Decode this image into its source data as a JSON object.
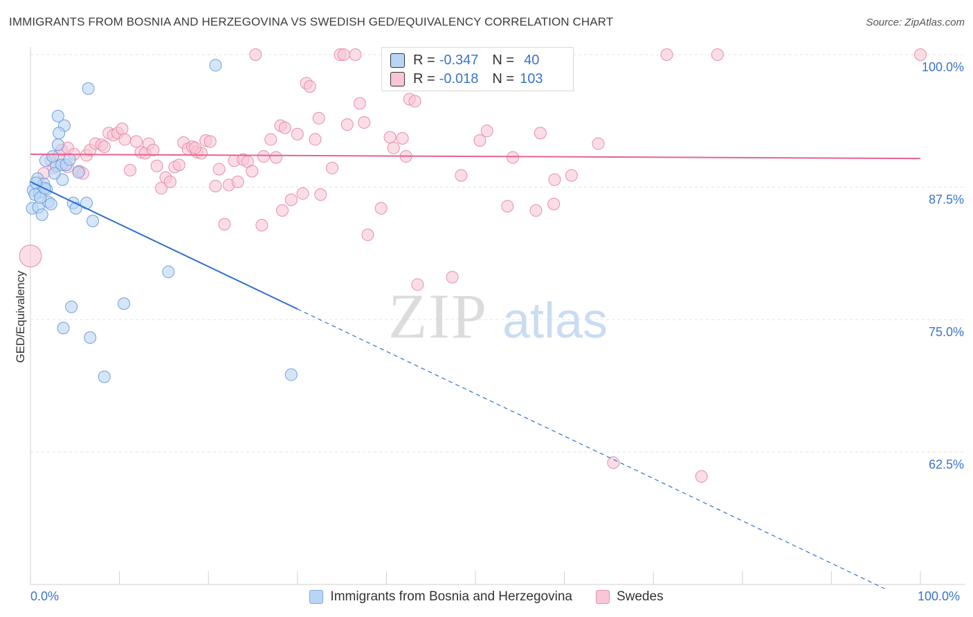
{
  "title": "IMMIGRANTS FROM BOSNIA AND HERZEGOVINA VS SWEDISH GED/EQUIVALENCY CORRELATION CHART",
  "source": "Source: ZipAtlas.com",
  "watermark": {
    "zip": "ZIP",
    "atlas": "atlas"
  },
  "legend_stats": [
    {
      "r_label": "R =",
      "r_value": "-0.347",
      "n_label": "N =",
      "n_value": "40"
    },
    {
      "r_label": "R =",
      "r_value": "-0.018",
      "n_label": "N =",
      "n_value": "103"
    }
  ],
  "colors": {
    "blue_fill": "#b9d5f5",
    "blue_stroke": "#6f9fdc",
    "blue_line": "#2f6fd0",
    "pink_fill": "#f8c6d6",
    "pink_stroke": "#e58eab",
    "pink_line": "#e8628a",
    "axis_text": "#3a73c8",
    "grid": "#e3e3e3"
  },
  "chart_data": {
    "type": "scatter",
    "ylabel": "GED/Equivalency",
    "xlabel": "",
    "xlim": [
      0,
      100
    ],
    "ylim": [
      50,
      100
    ],
    "x_ticks": [
      "0.0%",
      "100.0%"
    ],
    "y_ticks": [
      {
        "value": 100,
        "label": "100.0%"
      },
      {
        "value": 87.5,
        "label": "87.5%"
      },
      {
        "value": 75,
        "label": "75.0%"
      },
      {
        "value": 62.5,
        "label": "62.5%"
      }
    ],
    "legend_position": "bottom",
    "series": [
      {
        "name": "Immigrants from Bosnia and Herzegovina",
        "color": "#b9d5f5",
        "r": -0.347,
        "n": 40,
        "trend": {
          "x0": 0,
          "y0": 88.0,
          "x1": 30,
          "y1": 76.0,
          "dashed_to_x": 96
        },
        "points": [
          [
            0.3,
            87.2
          ],
          [
            0.8,
            88.3
          ],
          [
            1.5,
            87.8
          ],
          [
            1.0,
            87.0
          ],
          [
            1.8,
            87.3
          ],
          [
            0.5,
            86.8
          ],
          [
            0.2,
            85.5
          ],
          [
            0.9,
            85.6
          ],
          [
            1.3,
            84.9
          ],
          [
            2.0,
            86.1
          ],
          [
            2.3,
            85.9
          ],
          [
            1.7,
            90.0
          ],
          [
            2.9,
            89.5
          ],
          [
            3.5,
            89.6
          ],
          [
            4.0,
            89.6
          ],
          [
            3.6,
            88.2
          ],
          [
            2.5,
            90.4
          ],
          [
            3.1,
            91.5
          ],
          [
            3.8,
            93.3
          ],
          [
            3.2,
            92.6
          ],
          [
            3.1,
            94.2
          ],
          [
            4.4,
            90.1
          ],
          [
            5.4,
            88.9
          ],
          [
            4.8,
            86.0
          ],
          [
            5.1,
            85.5
          ],
          [
            6.3,
            86.0
          ],
          [
            7.0,
            84.3
          ],
          [
            6.5,
            96.8
          ],
          [
            20.8,
            99.0
          ],
          [
            15.5,
            79.5
          ],
          [
            10.5,
            76.5
          ],
          [
            4.6,
            76.2
          ],
          [
            3.7,
            74.2
          ],
          [
            6.7,
            73.3
          ],
          [
            8.3,
            69.6
          ],
          [
            29.3,
            69.8
          ],
          [
            1.1,
            86.5
          ],
          [
            1.6,
            87.4
          ],
          [
            0.6,
            87.9
          ],
          [
            2.7,
            88.8
          ]
        ]
      },
      {
        "name": "Swedes",
        "color": "#f8c6d6",
        "r": -0.018,
        "n": 103,
        "trend": {
          "x0": 0,
          "y0": 90.6,
          "x1": 100,
          "y1": 90.2
        },
        "points": [
          [
            0.0,
            81.0
          ],
          [
            1.5,
            88.8
          ],
          [
            2.3,
            90.0
          ],
          [
            2.6,
            89.3
          ],
          [
            3.2,
            90.5
          ],
          [
            3.5,
            91.0
          ],
          [
            4.2,
            91.2
          ],
          [
            4.9,
            90.6
          ],
          [
            5.5,
            89.0
          ],
          [
            6.3,
            90.5
          ],
          [
            6.7,
            91.0
          ],
          [
            7.3,
            91.6
          ],
          [
            8.0,
            91.5
          ],
          [
            8.3,
            91.3
          ],
          [
            8.8,
            92.6
          ],
          [
            9.3,
            92.4
          ],
          [
            9.8,
            92.6
          ],
          [
            10.3,
            93.0
          ],
          [
            10.6,
            92.0
          ],
          [
            11.2,
            89.1
          ],
          [
            11.9,
            91.8
          ],
          [
            12.4,
            90.8
          ],
          [
            12.9,
            90.7
          ],
          [
            13.3,
            91.6
          ],
          [
            13.8,
            91.0
          ],
          [
            14.2,
            89.5
          ],
          [
            14.7,
            87.4
          ],
          [
            15.2,
            88.4
          ],
          [
            15.7,
            88.0
          ],
          [
            16.2,
            89.4
          ],
          [
            16.7,
            89.6
          ],
          [
            17.2,
            91.7
          ],
          [
            17.7,
            91.1
          ],
          [
            18.2,
            91.3
          ],
          [
            18.7,
            90.8
          ],
          [
            19.2,
            90.7
          ],
          [
            19.7,
            91.9
          ],
          [
            20.2,
            91.8
          ],
          [
            20.8,
            87.6
          ],
          [
            21.2,
            89.2
          ],
          [
            21.8,
            84.0
          ],
          [
            22.3,
            87.7
          ],
          [
            22.9,
            90.0
          ],
          [
            23.3,
            88.0
          ],
          [
            23.9,
            90.1
          ],
          [
            24.4,
            89.9
          ],
          [
            24.9,
            89.0
          ],
          [
            25.3,
            100.0
          ],
          [
            26.0,
            83.9
          ],
          [
            26.2,
            90.4
          ],
          [
            27.0,
            92.0
          ],
          [
            27.6,
            90.3
          ],
          [
            28.1,
            93.3
          ],
          [
            28.6,
            93.1
          ],
          [
            29.3,
            86.3
          ],
          [
            28.3,
            85.3
          ],
          [
            30.0,
            92.5
          ],
          [
            30.6,
            86.9
          ],
          [
            31.0,
            97.3
          ],
          [
            31.4,
            97.0
          ],
          [
            32.0,
            92.0
          ],
          [
            32.4,
            94.0
          ],
          [
            32.6,
            86.8
          ],
          [
            33.9,
            89.3
          ],
          [
            34.8,
            100.0
          ],
          [
            35.2,
            100.0
          ],
          [
            35.6,
            93.4
          ],
          [
            36.5,
            100.0
          ],
          [
            37.0,
            95.4
          ],
          [
            37.5,
            93.6
          ],
          [
            37.9,
            83.0
          ],
          [
            39.4,
            85.5
          ],
          [
            40.4,
            92.2
          ],
          [
            40.8,
            91.2
          ],
          [
            41.8,
            92.1
          ],
          [
            42.2,
            90.4
          ],
          [
            42.6,
            95.8
          ],
          [
            43.2,
            95.6
          ],
          [
            43.5,
            78.3
          ],
          [
            46.0,
            100.0
          ],
          [
            47.0,
            100.0
          ],
          [
            47.4,
            79.0
          ],
          [
            48.0,
            100.0
          ],
          [
            48.4,
            88.6
          ],
          [
            50.5,
            91.9
          ],
          [
            51.3,
            92.8
          ],
          [
            53.6,
            85.7
          ],
          [
            54.2,
            90.3
          ],
          [
            56.8,
            85.3
          ],
          [
            57.3,
            92.6
          ],
          [
            58.8,
            85.9
          ],
          [
            58.9,
            88.2
          ],
          [
            60.8,
            88.6
          ],
          [
            63.8,
            91.6
          ],
          [
            65.5,
            61.5
          ],
          [
            71.5,
            100.0
          ],
          [
            75.4,
            60.2
          ],
          [
            77.2,
            100.0
          ],
          [
            100.0,
            100.0
          ],
          [
            45.5,
            100.0
          ],
          [
            5.9,
            88.8
          ],
          [
            18.5,
            91.2
          ],
          [
            4.2,
            89.4
          ]
        ]
      }
    ]
  },
  "bottom_legend": [
    {
      "label": "Immigrants from Bosnia and Herzegovina"
    },
    {
      "label": "Swedes"
    }
  ]
}
